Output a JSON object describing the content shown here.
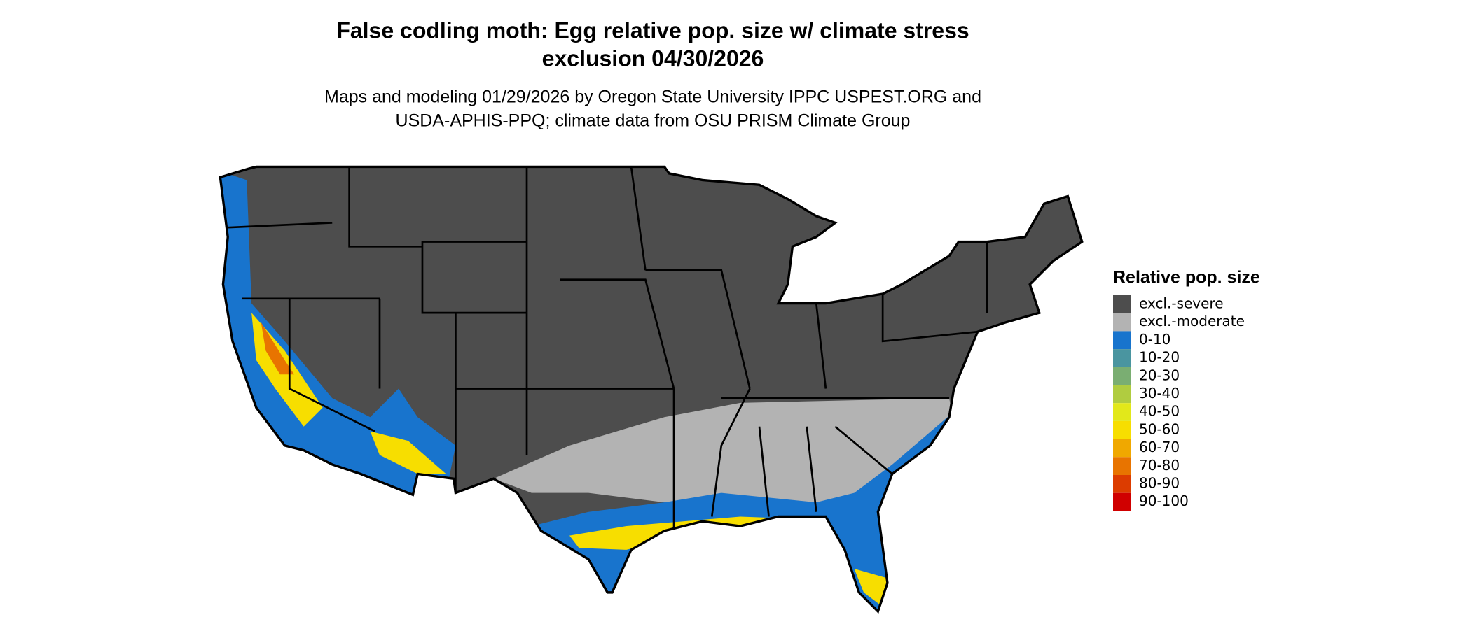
{
  "title": [
    "False codling moth: Egg relative pop. size w/ climate stress",
    "exclusion 04/30/2026"
  ],
  "subtitle": [
    "Maps and modeling 01/29/2026 by Oregon State University IPPC USPEST.ORG and",
    "USDA-APHIS-PPQ; climate data from OSU PRISM Climate Group"
  ],
  "legend": {
    "title": "Relative pop. size",
    "items": [
      {
        "label": "excl.-severe",
        "color": "#4d4d4d"
      },
      {
        "label": "excl.-moderate",
        "color": "#b3b3b3"
      },
      {
        "label": "0-10",
        "color": "#1874cd"
      },
      {
        "label": "10-20",
        "color": "#4a95a0"
      },
      {
        "label": "20-30",
        "color": "#7aae72"
      },
      {
        "label": "30-40",
        "color": "#b0cc40"
      },
      {
        "label": "40-50",
        "color": "#e2e81a"
      },
      {
        "label": "50-60",
        "color": "#f7de00"
      },
      {
        "label": "60-70",
        "color": "#f0a800"
      },
      {
        "label": "70-80",
        "color": "#e87400"
      },
      {
        "label": "80-90",
        "color": "#dc3c00"
      },
      {
        "label": "90-100",
        "color": "#d00000"
      }
    ]
  }
}
